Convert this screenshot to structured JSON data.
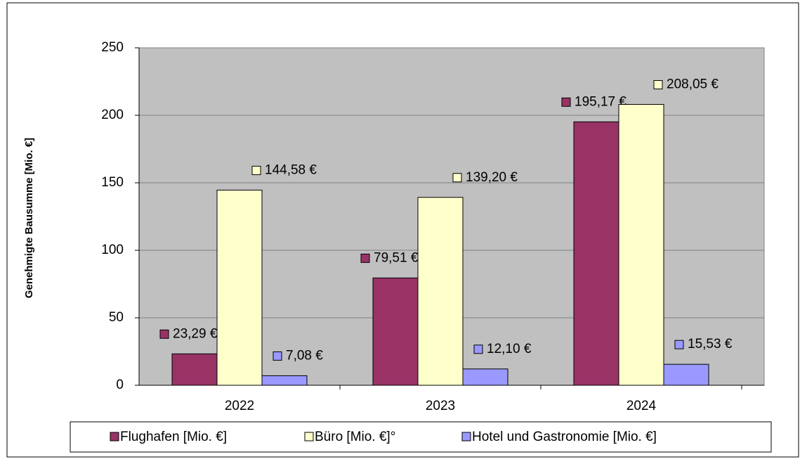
{
  "chart_data": {
    "type": "bar",
    "y_label": "Genehmigte Bausumme [Mio. €]",
    "categories": [
      "2022",
      "2023",
      "2024"
    ],
    "series": [
      {
        "name": "Flughafen [Mio. €]",
        "color": "#993366",
        "values": [
          23.29,
          79.51,
          195.17
        ],
        "value_labels": [
          "23,29 €",
          "79,51 €",
          "195,17 €"
        ]
      },
      {
        "name": "Büro [Mio. €]°",
        "color": "#ffffcc",
        "values": [
          144.58,
          139.2,
          208.05
        ],
        "value_labels": [
          "144,58 €",
          "139,20 €",
          "208,05 €"
        ]
      },
      {
        "name": "Hotel und Gastronomie [Mio. €]",
        "color": "#9999ff",
        "values": [
          7.08,
          12.1,
          15.53
        ],
        "value_labels": [
          "7,08 €",
          "12,10 €",
          "15,53 €"
        ]
      }
    ],
    "ylim": [
      0,
      250
    ],
    "yticks": [
      0,
      50,
      100,
      150,
      200,
      250
    ],
    "grid": true,
    "plot_background": "#c0c0c0",
    "legend": "bottom"
  }
}
